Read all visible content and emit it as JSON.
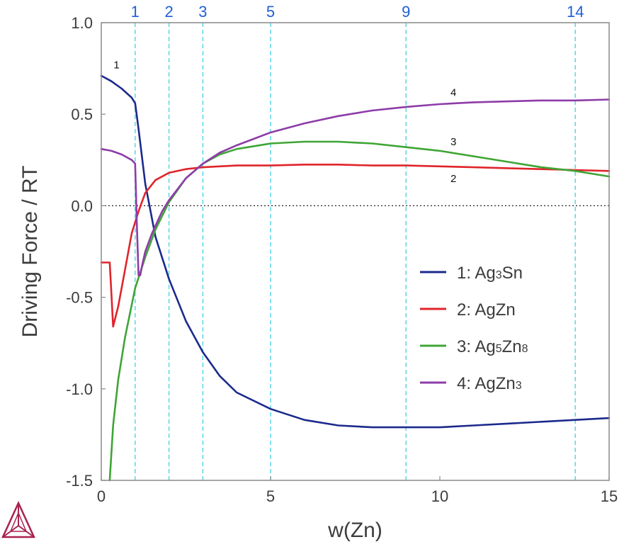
{
  "chart_data": {
    "type": "line",
    "xlabel": "w(Zn)",
    "ylabel": "Driving Force / RT",
    "xlim": [
      0,
      15
    ],
    "ylim": [
      -1.5,
      1.0
    ],
    "xticks": [
      0,
      5,
      10,
      15
    ],
    "yticks": [
      1.0,
      0.5,
      0.0,
      -0.5,
      -1.0,
      -1.5
    ],
    "ytick_labels": [
      "1.0",
      "0.5",
      "0.0",
      "-0.5",
      "-1.0",
      "-1.5"
    ],
    "grid": false,
    "zero_line": "dotted",
    "vertical_markers": [
      1,
      2,
      3,
      5,
      9,
      14
    ],
    "vertical_marker_color": "#4fd3e6",
    "legend_position": "lower-right",
    "series": [
      {
        "id": "1",
        "name": "1: Ag3Sn",
        "legend": {
          "prefix": "1: Ag",
          "sub1": "3",
          "mid": "Sn",
          "sub2": ""
        },
        "color": "#1b2a8c",
        "x": [
          0,
          0.3,
          0.6,
          0.9,
          1.0,
          1.1,
          1.3,
          1.6,
          2.0,
          2.5,
          3.0,
          3.5,
          4.0,
          5.0,
          6.0,
          7.0,
          8.0,
          9.0,
          10.0,
          11.0,
          12.0,
          13.0,
          14.0,
          15.0
        ],
        "y": [
          0.71,
          0.68,
          0.64,
          0.59,
          0.56,
          0.42,
          0.12,
          -0.17,
          -0.4,
          -0.63,
          -0.8,
          -0.93,
          -1.02,
          -1.11,
          -1.17,
          -1.2,
          -1.21,
          -1.21,
          -1.21,
          -1.2,
          -1.19,
          -1.18,
          -1.17,
          -1.16
        ]
      },
      {
        "id": "2",
        "name": "2: AgZn",
        "legend": {
          "prefix": "2: AgZn",
          "sub1": "",
          "mid": "",
          "sub2": ""
        },
        "color": "#e0242b",
        "x": [
          0,
          0.2,
          0.25,
          0.3,
          0.35,
          0.5,
          0.7,
          0.9,
          1.1,
          1.3,
          1.6,
          2.0,
          2.5,
          3.0,
          4.0,
          5.0,
          6.0,
          7.0,
          8.0,
          9.0,
          10.0,
          11.0,
          12.0,
          13.0,
          14.0,
          15.0
        ],
        "y": [
          -0.31,
          -0.31,
          -0.31,
          -0.48,
          -0.66,
          -0.55,
          -0.35,
          -0.15,
          -0.03,
          0.07,
          0.14,
          0.18,
          0.2,
          0.21,
          0.22,
          0.22,
          0.225,
          0.225,
          0.22,
          0.22,
          0.215,
          0.21,
          0.205,
          0.2,
          0.195,
          0.19
        ]
      },
      {
        "id": "3",
        "name": "3: Ag5Zn8",
        "legend": {
          "prefix": "3: Ag",
          "sub1": "5",
          "mid": "Zn",
          "sub2": "8"
        },
        "color": "#3fa535",
        "x": [
          0.25,
          0.35,
          0.5,
          0.7,
          1.0,
          1.3,
          1.6,
          2.0,
          2.5,
          3.0,
          3.5,
          4.0,
          5.0,
          6.0,
          7.0,
          8.0,
          9.0,
          10.0,
          11.0,
          12.0,
          13.0,
          14.0,
          15.0
        ],
        "y": [
          -1.5,
          -1.2,
          -0.95,
          -0.72,
          -0.45,
          -0.28,
          -0.13,
          0.02,
          0.15,
          0.23,
          0.28,
          0.31,
          0.34,
          0.35,
          0.35,
          0.34,
          0.32,
          0.3,
          0.27,
          0.24,
          0.21,
          0.19,
          0.16
        ]
      },
      {
        "id": "4",
        "name": "4: AgZn3",
        "legend": {
          "prefix": "4: AgZn",
          "sub1": "",
          "mid": "",
          "sub2": "3"
        },
        "color": "#8d3ca8",
        "x": [
          0,
          0.3,
          0.6,
          0.9,
          1.0,
          1.05,
          1.1,
          1.15,
          1.2,
          1.3,
          1.5,
          1.8,
          2.0,
          2.5,
          3.0,
          3.5,
          4.0,
          5.0,
          6.0,
          7.0,
          8.0,
          9.0,
          10.0,
          11.0,
          12.0,
          13.0,
          14.0,
          15.0
        ],
        "y": [
          0.31,
          0.3,
          0.28,
          0.25,
          0.23,
          -0.1,
          -0.38,
          -0.38,
          -0.33,
          -0.25,
          -0.15,
          -0.03,
          0.03,
          0.15,
          0.23,
          0.29,
          0.33,
          0.4,
          0.45,
          0.49,
          0.52,
          0.54,
          0.555,
          0.565,
          0.57,
          0.575,
          0.575,
          0.58
        ]
      }
    ],
    "curve_labels": [
      {
        "text": "1",
        "x": 0.45,
        "y": 0.75
      },
      {
        "text": "4",
        "x": 10.4,
        "y": 0.6
      },
      {
        "text": "3",
        "x": 10.4,
        "y": 0.33
      },
      {
        "text": "2",
        "x": 10.4,
        "y": 0.13
      }
    ]
  },
  "logo": {
    "name": "triangle-logo",
    "color": "#a8224f"
  }
}
